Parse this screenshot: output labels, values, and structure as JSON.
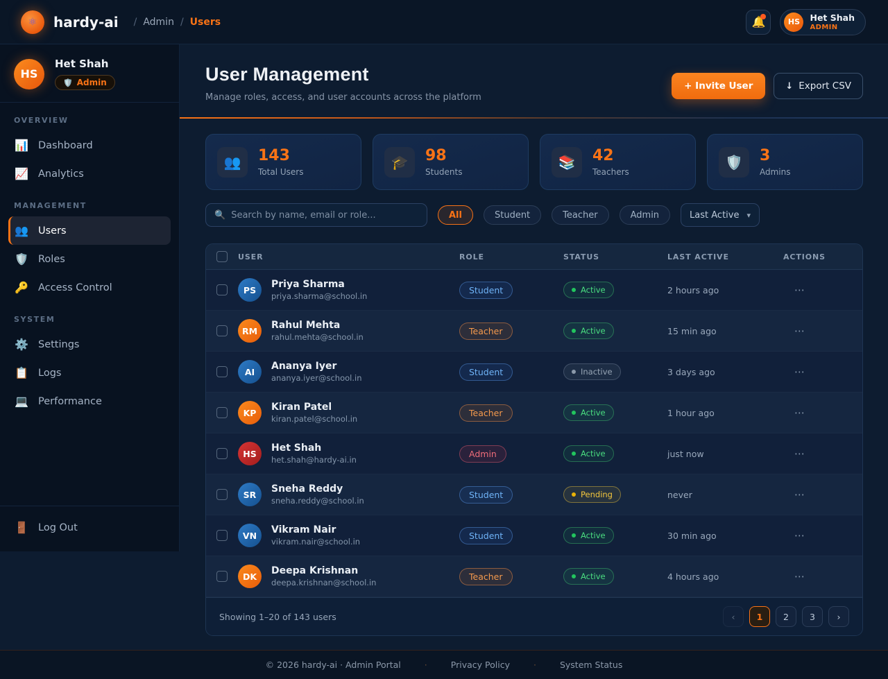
{
  "colors": {
    "accent_orange": "#f97316",
    "active_green": "#4ade80",
    "pending_yellow": "#eab308",
    "inactive_gray": "#97a5b5",
    "student_blue": "#6fb3f7",
    "admin_red": "#ef6d7a",
    "page_background": "#0d1c30",
    "sidebar_background": "#081220"
  },
  "header": {
    "logo": {
      "glyph": "⚛︎",
      "text": "hardy-ai"
    },
    "breadcrumb": {
      "separator": "/",
      "items": [
        {
          "label": "Admin"
        },
        {
          "label": "Users"
        }
      ]
    },
    "bell_icon": "🔔",
    "user": {
      "initials": "HS",
      "name": "Het Shah",
      "role": "ADMIN"
    }
  },
  "sidebar": {
    "profile": {
      "initials": "HS",
      "name": "Het Shah",
      "badge_icon": "🛡️",
      "badge_label": "Admin"
    },
    "sections": [
      {
        "label": "OVERVIEW",
        "items": [
          {
            "icon": "📊",
            "label": "Dashboard"
          },
          {
            "icon": "📈",
            "label": "Analytics"
          }
        ]
      },
      {
        "label": "MANAGEMENT",
        "items": [
          {
            "icon": "👥",
            "label": "Users",
            "active": true
          },
          {
            "icon": "🛡️",
            "label": "Roles"
          },
          {
            "icon": "🔑",
            "label": "Access Control"
          }
        ]
      },
      {
        "label": "SYSTEM",
        "items": [
          {
            "icon": "⚙️",
            "label": "Settings"
          },
          {
            "icon": "📋",
            "label": "Logs"
          },
          {
            "icon": "💻",
            "label": "Performance"
          }
        ]
      }
    ],
    "logout": {
      "icon": "🚪",
      "label": "Log Out"
    }
  },
  "page": {
    "title": "User Management",
    "subtitle": "Manage roles, access, and user accounts across the platform",
    "invite_button": "+ Invite User",
    "export_icon": "↓",
    "export_button": "Export CSV"
  },
  "stats": [
    {
      "icon": "👥",
      "value": "143",
      "label": "Total Users"
    },
    {
      "icon": "🎓",
      "value": "98",
      "label": "Students"
    },
    {
      "icon": "📚",
      "value": "42",
      "label": "Teachers"
    },
    {
      "icon": "🛡️",
      "value": "3",
      "label": "Admins"
    }
  ],
  "filters": {
    "search_icon": "🔍",
    "search_placeholder": "Search by name, email or role...",
    "chips": [
      {
        "label": "All",
        "active": true
      },
      {
        "label": "Student"
      },
      {
        "label": "Teacher"
      },
      {
        "label": "Admin"
      }
    ],
    "sort_value": "Last Active",
    "sort_chevron": "▾"
  },
  "table": {
    "columns": [
      "USER",
      "ROLE",
      "STATUS",
      "LAST ACTIVE",
      "ACTIONS"
    ],
    "actions_icon": "⋯",
    "rows": [
      {
        "initials": "PS",
        "avatar_variant": "blue",
        "name": "Priya Sharma",
        "email": "priya.sharma@school.in",
        "role": "Student",
        "role_variant": "student",
        "status": "Active",
        "status_variant": "active",
        "last_active": "2 hours ago"
      },
      {
        "initials": "RM",
        "avatar_variant": "orange",
        "name": "Rahul Mehta",
        "email": "rahul.mehta@school.in",
        "role": "Teacher",
        "role_variant": "teacher",
        "status": "Active",
        "status_variant": "active",
        "last_active": "15 min ago"
      },
      {
        "initials": "AI",
        "avatar_variant": "blue",
        "name": "Ananya Iyer",
        "email": "ananya.iyer@school.in",
        "role": "Student",
        "role_variant": "student",
        "status": "Inactive",
        "status_variant": "inactive",
        "last_active": "3 days ago"
      },
      {
        "initials": "KP",
        "avatar_variant": "orange",
        "name": "Kiran Patel",
        "email": "kiran.patel@school.in",
        "role": "Teacher",
        "role_variant": "teacher",
        "status": "Active",
        "status_variant": "active",
        "last_active": "1 hour ago"
      },
      {
        "initials": "HS",
        "avatar_variant": "red",
        "name": "Het Shah",
        "email": "het.shah@hardy-ai.in",
        "role": "Admin",
        "role_variant": "admin",
        "status": "Active",
        "status_variant": "active",
        "last_active": "just now"
      },
      {
        "initials": "SR",
        "avatar_variant": "blue",
        "name": "Sneha Reddy",
        "email": "sneha.reddy@school.in",
        "role": "Student",
        "role_variant": "student",
        "status": "Pending",
        "status_variant": "pending",
        "last_active": "never"
      },
      {
        "initials": "VN",
        "avatar_variant": "blue",
        "name": "Vikram Nair",
        "email": "vikram.nair@school.in",
        "role": "Student",
        "role_variant": "student",
        "status": "Active",
        "status_variant": "active",
        "last_active": "30 min ago"
      },
      {
        "initials": "DK",
        "avatar_variant": "orange",
        "name": "Deepa Krishnan",
        "email": "deepa.krishnan@school.in",
        "role": "Teacher",
        "role_variant": "teacher",
        "status": "Active",
        "status_variant": "active",
        "last_active": "4 hours ago"
      }
    ]
  },
  "pagination": {
    "summary": "Showing 1–20 of 143 users",
    "prev": "‹",
    "pages": [
      "1",
      "2",
      "3"
    ],
    "active_page": "1",
    "next": "›"
  },
  "footer": {
    "copyright": "© 2026 hardy-ai · Admin Portal",
    "separator": "·",
    "links": [
      "Privacy Policy",
      "System Status"
    ]
  }
}
